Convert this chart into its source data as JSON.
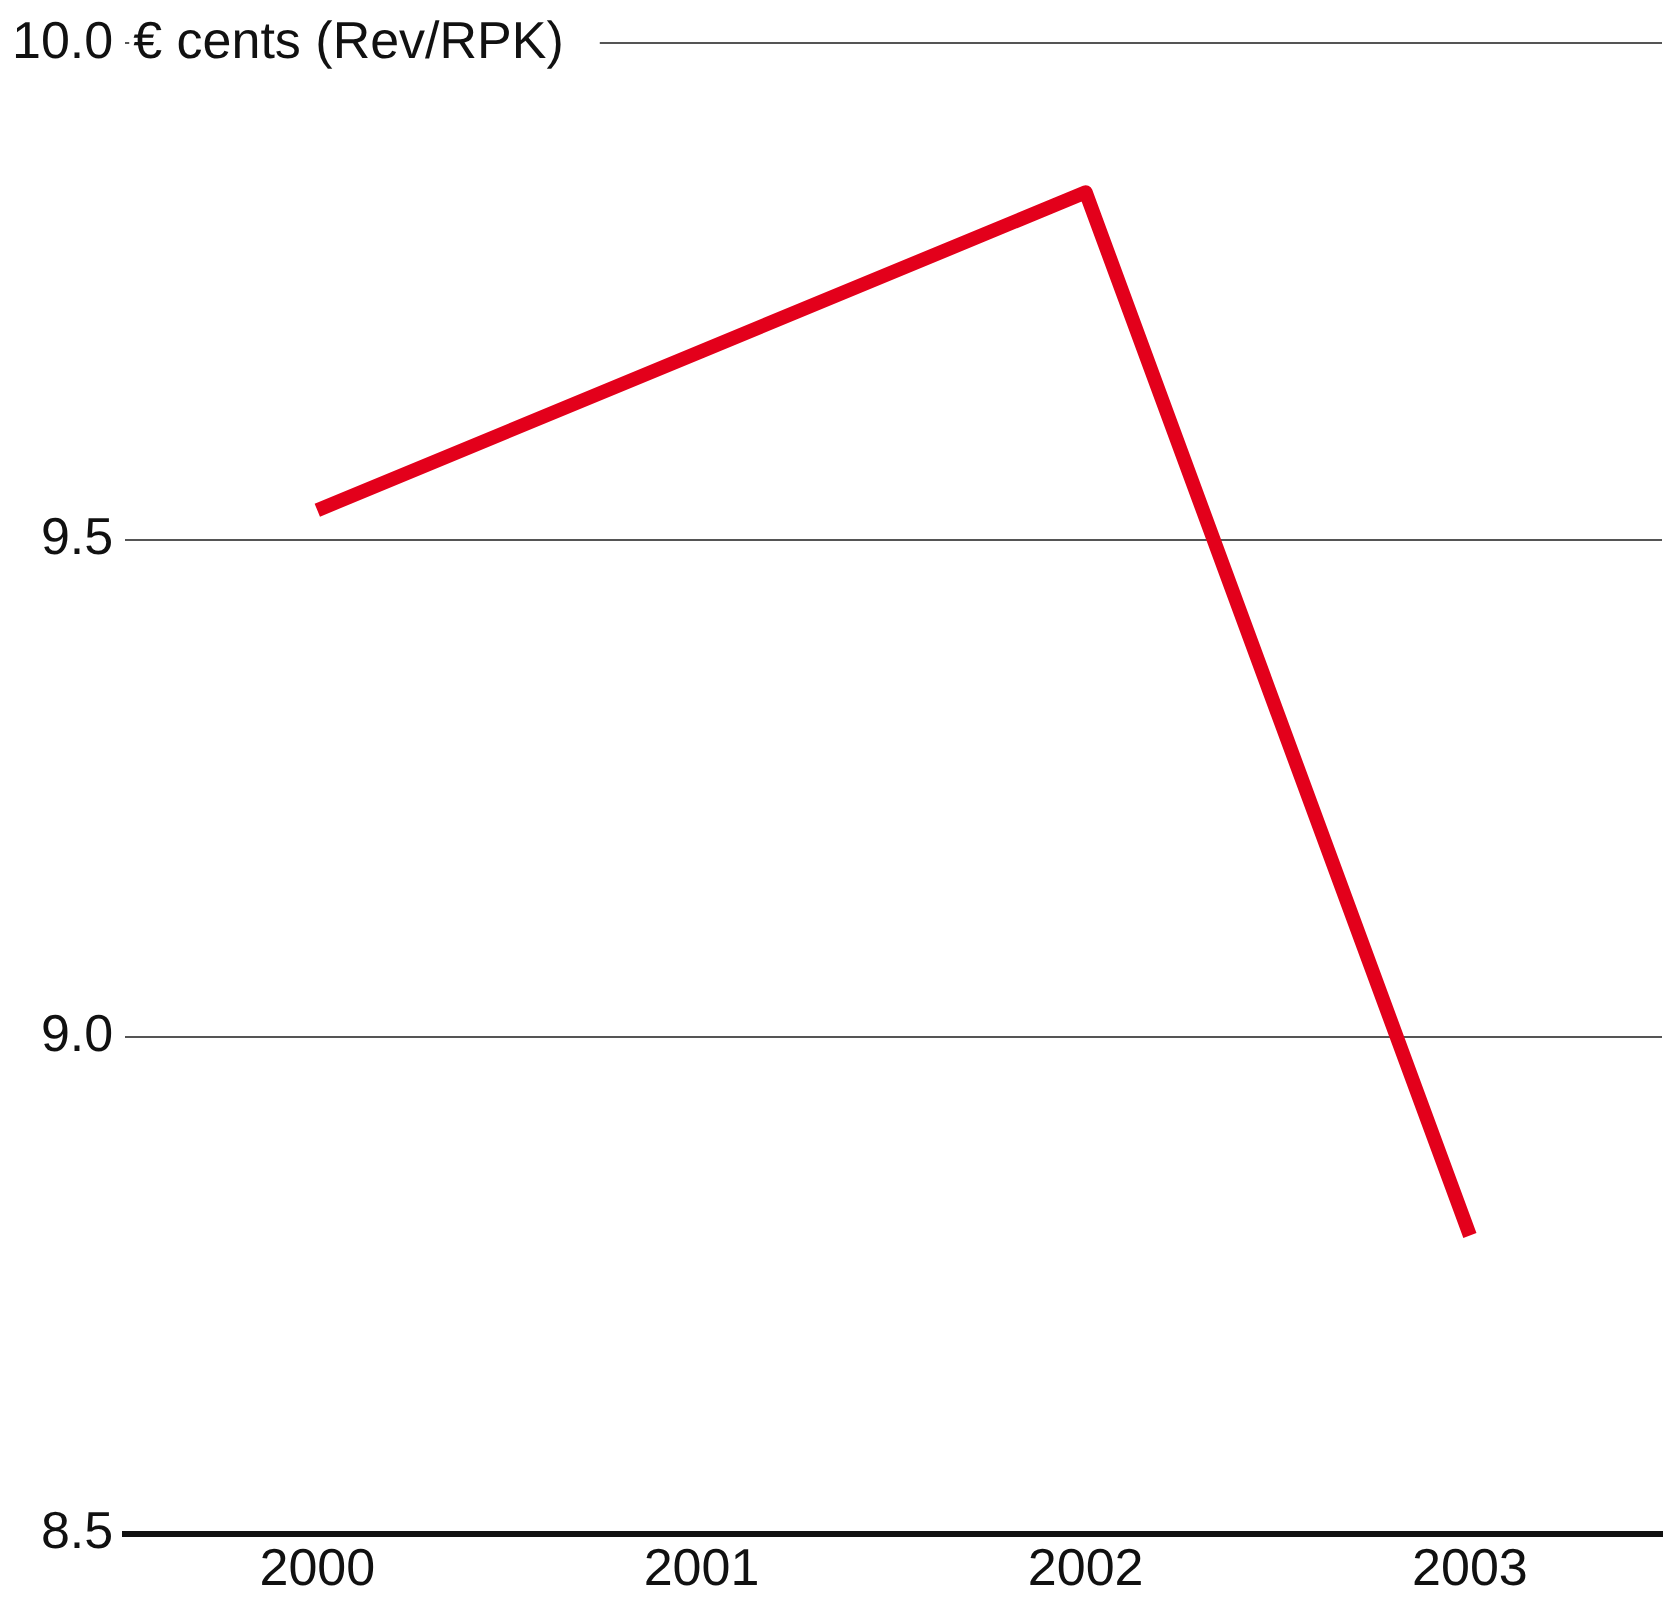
{
  "chart_data": {
    "type": "line",
    "ylabel": "€ cents (Rev/RPK)",
    "categories": [
      "2000",
      "2001",
      "2002",
      "2003"
    ],
    "series": [
      {
        "color": "#e3001b",
        "values": [
          9.53,
          9.69,
          9.85,
          8.8
        ]
      }
    ],
    "ylim": [
      8.5,
      10.0
    ],
    "yticks": [
      {
        "value": 8.5,
        "label": "8.5"
      },
      {
        "value": 9.0,
        "label": "9.0"
      },
      9.5,
      {
        "value": 10.0,
        "label": "10.0"
      }
    ],
    "grid": "y",
    "legend": false,
    "marker": "none",
    "line_style": "solid"
  }
}
